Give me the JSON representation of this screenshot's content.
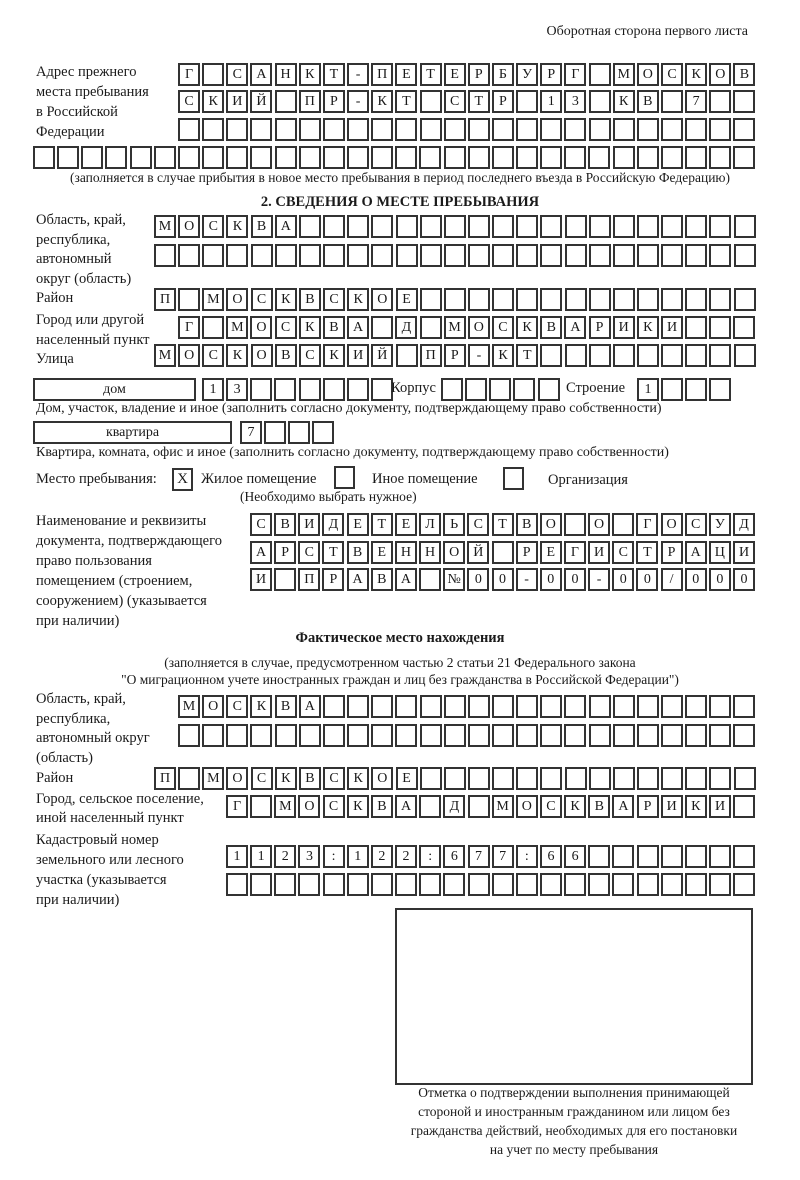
{
  "header": {
    "side_label": "Оборотная сторона первого листа"
  },
  "previous_address": {
    "label_lines": [
      "Адрес прежнего",
      "места пребывания",
      "в Российской",
      "Федерации"
    ],
    "rows": [
      [
        "Г",
        "",
        "С",
        "А",
        "Н",
        "К",
        "Т",
        "-",
        "П",
        "Е",
        "Т",
        "Е",
        "Р",
        "Б",
        "У",
        "Р",
        "Г",
        "",
        "М",
        "О",
        "С",
        "К",
        "О",
        "В"
      ],
      [
        "С",
        "К",
        "И",
        "Й",
        "",
        "П",
        "Р",
        "-",
        "К",
        "Т",
        "",
        "С",
        "Т",
        "Р",
        "",
        "1",
        "3",
        "",
        "К",
        "В",
        "",
        "7",
        "",
        ""
      ],
      [
        "",
        "",
        "",
        "",
        "",
        "",
        "",
        "",
        "",
        "",
        "",
        "",
        "",
        "",
        "",
        "",
        "",
        "",
        "",
        "",
        "",
        "",
        "",
        ""
      ],
      [
        "",
        "",
        "",
        "",
        "",
        "",
        "",
        "",
        "",
        "",
        "",
        "",
        "",
        "",
        "",
        "",
        "",
        "",
        "",
        "",
        "",
        "",
        "",
        "",
        "",
        "",
        "",
        "",
        "",
        ""
      ]
    ],
    "note": "(заполняется в случае прибытия в новое место пребывания в период последнего въезда в Российскую Федерацию)"
  },
  "stay": {
    "title": "2. СВЕДЕНИЯ О МЕСТЕ ПРЕБЫВАНИЯ",
    "region": {
      "label_lines": [
        "Область, край,",
        "республика,",
        "автономный",
        "округ (область)"
      ],
      "rows": [
        [
          "М",
          "О",
          "С",
          "К",
          "В",
          "А",
          "",
          "",
          "",
          "",
          "",
          "",
          "",
          "",
          "",
          "",
          "",
          "",
          "",
          "",
          "",
          "",
          "",
          "",
          ""
        ],
        [
          "",
          "",
          "",
          "",
          "",
          "",
          "",
          "",
          "",
          "",
          "",
          "",
          "",
          "",
          "",
          "",
          "",
          "",
          "",
          "",
          "",
          "",
          "",
          "",
          ""
        ]
      ]
    },
    "district": {
      "label": "Район",
      "cells": [
        "П",
        "",
        "М",
        "О",
        "С",
        "К",
        "В",
        "С",
        "К",
        "О",
        "Е",
        "",
        "",
        "",
        "",
        "",
        "",
        "",
        "",
        "",
        "",
        "",
        "",
        "",
        ""
      ]
    },
    "city": {
      "label_lines": [
        "Город или другой",
        "населенный пункт"
      ],
      "cells": [
        "Г",
        "",
        "М",
        "О",
        "С",
        "К",
        "В",
        "А",
        "",
        "Д",
        "",
        "М",
        "О",
        "С",
        "К",
        "В",
        "А",
        "Р",
        "И",
        "К",
        "И",
        "",
        "",
        ""
      ]
    },
    "street": {
      "label": "Улица",
      "cells": [
        "М",
        "О",
        "С",
        "К",
        "О",
        "В",
        "С",
        "К",
        "И",
        "Й",
        "",
        "П",
        "Р",
        "-",
        "К",
        "Т",
        "",
        "",
        "",
        "",
        "",
        "",
        "",
        "",
        ""
      ]
    },
    "house": {
      "type": "дом",
      "cells": [
        "1",
        "3",
        "",
        "",
        "",
        "",
        "",
        ""
      ],
      "korpus_label": "Корпус",
      "korpus_cells": [
        "",
        "",
        "",
        "",
        ""
      ],
      "building_label": "Строение",
      "building_cells": [
        "1",
        "",
        "",
        ""
      ]
    },
    "house_note": "Дом, участок, владение и иное (заполнить согласно документу, подтверждающему право собственности)",
    "apartment": {
      "type": "квартира",
      "cells": [
        "7",
        "",
        "",
        ""
      ]
    },
    "apartment_note": "Квартира, комната, офис и иное (заполнить согласно документу, подтверждающему право собственности)",
    "place": {
      "label": "Место пребывания:",
      "options": [
        {
          "label": "Жилое помещение",
          "mark": "Х"
        },
        {
          "label": "Иное помещение",
          "mark": ""
        },
        {
          "label": "Организация",
          "mark": ""
        }
      ],
      "note": "(Необходимо выбрать нужное)"
    },
    "document": {
      "label_lines": [
        "Наименование и реквизиты",
        "документа, подтверждающего",
        "право пользования",
        "помещением (строением,",
        "сооружением) (указывается",
        "при наличии)"
      ],
      "rows": [
        [
          "С",
          "В",
          "И",
          "Д",
          "Е",
          "Т",
          "Е",
          "Л",
          "Ь",
          "С",
          "Т",
          "В",
          "О",
          "",
          "О",
          "",
          "Г",
          "О",
          "С",
          "У",
          "Д"
        ],
        [
          "А",
          "Р",
          "С",
          "Т",
          "В",
          "Е",
          "Н",
          "Н",
          "О",
          "Й",
          "",
          "Р",
          "Е",
          "Г",
          "И",
          "С",
          "Т",
          "Р",
          "А",
          "Ц",
          "И"
        ],
        [
          "И",
          "",
          "П",
          "Р",
          "А",
          "В",
          "А",
          "",
          "№",
          "0",
          "0",
          "-",
          "0",
          "0",
          "-",
          "0",
          "0",
          "/",
          "0",
          "0",
          "0"
        ]
      ]
    }
  },
  "actual": {
    "title": "Фактическое место нахождения",
    "note_lines": [
      "(заполняется в случае, предусмотренном частью 2 статьи 21 Федерального закона",
      "\"О миграционном учете иностранных граждан и лиц без гражданства в Российской Федерации\")"
    ],
    "region": {
      "label_lines": [
        "Область, край,",
        "республика,",
        "автономный округ",
        "(область)"
      ],
      "rows": [
        [
          "М",
          "О",
          "С",
          "К",
          "В",
          "А",
          "",
          "",
          "",
          "",
          "",
          "",
          "",
          "",
          "",
          "",
          "",
          "",
          "",
          "",
          "",
          "",
          "",
          ""
        ],
        [
          "",
          "",
          "",
          "",
          "",
          "",
          "",
          "",
          "",
          "",
          "",
          "",
          "",
          "",
          "",
          "",
          "",
          "",
          "",
          "",
          "",
          "",
          "",
          ""
        ]
      ]
    },
    "district": {
      "label": "Район",
      "cells": [
        "П",
        "",
        "М",
        "О",
        "С",
        "К",
        "В",
        "С",
        "К",
        "О",
        "Е",
        "",
        "",
        "",
        "",
        "",
        "",
        "",
        "",
        "",
        "",
        "",
        "",
        "",
        ""
      ]
    },
    "city": {
      "label_lines": [
        "Город, сельское поселение,",
        "иной населенный пункт"
      ],
      "cells": [
        "Г",
        "",
        "М",
        "О",
        "С",
        "К",
        "В",
        "А",
        "",
        "Д",
        "",
        "М",
        "О",
        "С",
        "К",
        "В",
        "А",
        "Р",
        "И",
        "К",
        "И",
        ""
      ]
    },
    "cadastral": {
      "label_lines": [
        "Кадастровый номер",
        "земельного или лесного",
        "участка (указывается",
        "при наличии)"
      ],
      "rows": [
        [
          "1",
          "1",
          "2",
          "3",
          ":",
          "1",
          "2",
          "2",
          ":",
          "6",
          "7",
          "7",
          ":",
          "6",
          "6",
          "",
          "",
          "",
          "",
          "",
          "",
          ""
        ],
        [
          "",
          "",
          "",
          "",
          "",
          "",
          "",
          "",
          "",
          "",
          "",
          "",
          "",
          "",
          "",
          "",
          "",
          "",
          "",
          "",
          "",
          ""
        ]
      ]
    }
  },
  "confirmation": {
    "caption_lines": [
      "Отметка о подтверждении выполнения принимающей",
      "стороной и иностранным гражданином или лицом без",
      "гражданства действий, необходимых для его постановки",
      "на учет по месту пребывания"
    ]
  }
}
